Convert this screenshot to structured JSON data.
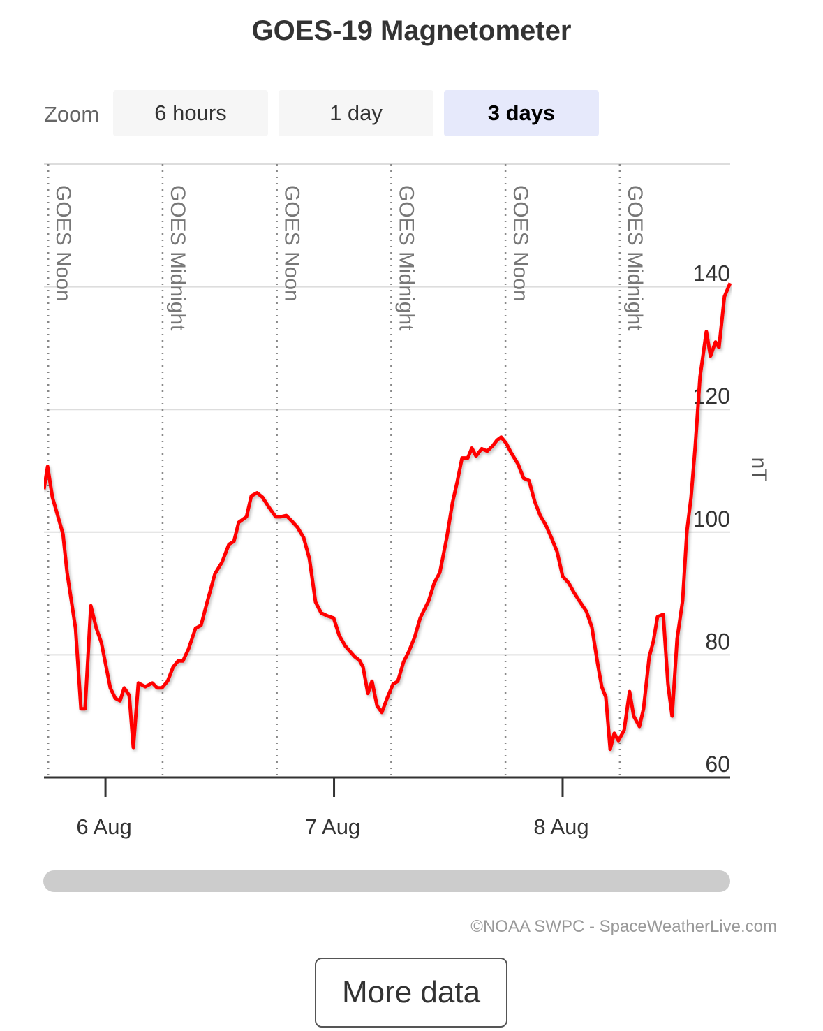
{
  "header": {
    "title": "GOES-19 Magnetometer"
  },
  "zoom": {
    "label": "Zoom",
    "options": [
      "6 hours",
      "1 day",
      "3 days"
    ],
    "selected": 2
  },
  "chart_data": {
    "type": "line",
    "y_label": "nT",
    "x": [
      5.731,
      5.747,
      5.768,
      5.814,
      5.832,
      5.869,
      5.893,
      5.911,
      5.936,
      5.96,
      5.982,
      6.021,
      6.043,
      6.064,
      6.082,
      6.104,
      6.122,
      6.144,
      6.174,
      6.205,
      6.226,
      6.247,
      6.272,
      6.296,
      6.318,
      6.339,
      6.363,
      6.394,
      6.418,
      6.443,
      6.479,
      6.51,
      6.54,
      6.562,
      6.583,
      6.617,
      6.638,
      6.663,
      6.687,
      6.718,
      6.745,
      6.766,
      6.791,
      6.815,
      6.84,
      6.867,
      6.892,
      6.919,
      6.944,
      6.974,
      6.998,
      7.023,
      7.05,
      7.09,
      7.111,
      7.127,
      7.148,
      7.166,
      7.188,
      7.209,
      7.234,
      7.258,
      7.279,
      7.304,
      7.328,
      7.353,
      7.377,
      7.414,
      7.438,
      7.463,
      7.493,
      7.518,
      7.539,
      7.56,
      7.585,
      7.603,
      7.621,
      7.646,
      7.67,
      7.695,
      7.713,
      7.731,
      7.753,
      7.774,
      7.805,
      7.829,
      7.853,
      7.878,
      7.902,
      7.927,
      7.951,
      7.976,
      8.0,
      8.027,
      8.049,
      8.073,
      8.104,
      8.128,
      8.153,
      8.171,
      8.189,
      8.208,
      8.226,
      8.244,
      8.269,
      8.293,
      8.311,
      8.336,
      8.354,
      8.379,
      8.397,
      8.415,
      8.44,
      8.461,
      8.479,
      8.501,
      8.525,
      8.544,
      8.562,
      8.58,
      8.601,
      8.629,
      8.647,
      8.669,
      8.684,
      8.708,
      8.733
    ],
    "series": [
      {
        "name": "GOES-19",
        "color": "#ff0000",
        "values": [
          107,
          110.7,
          105.7,
          99.7,
          93.4,
          84.3,
          71.2,
          71.2,
          88,
          84.3,
          82,
          74.6,
          72.9,
          72.5,
          74.6,
          73.4,
          64.9,
          75.4,
          74.8,
          75.4,
          74.6,
          74.6,
          75.7,
          78,
          79,
          79,
          80.9,
          84.3,
          84.8,
          88.3,
          93.2,
          95.1,
          98,
          98.5,
          101.6,
          102.5,
          105.9,
          106.4,
          105.7,
          103.9,
          102.5,
          102.5,
          102.7,
          101.8,
          100.8,
          99.1,
          95.7,
          88.6,
          86.8,
          86.3,
          86,
          83.1,
          81.4,
          79.7,
          79.1,
          78,
          73.7,
          75.7,
          71.7,
          70.6,
          73.1,
          75.2,
          75.7,
          78.8,
          80.6,
          82.9,
          86,
          88.8,
          91.7,
          93.4,
          99.1,
          104.8,
          108.2,
          112.1,
          112.1,
          113.7,
          112.4,
          113.6,
          113.2,
          114.1,
          115,
          115.5,
          114.5,
          113,
          111.1,
          108.8,
          108.4,
          105,
          102.7,
          101.1,
          99.1,
          96.8,
          92.8,
          91.7,
          90.2,
          88.8,
          87.1,
          84.5,
          78.6,
          74.8,
          73.1,
          64.6,
          67.2,
          66,
          67.7,
          74,
          70,
          68.3,
          71.2,
          79.7,
          82.2,
          86.2,
          86.6,
          75.2,
          70,
          82.6,
          88.8,
          100.2,
          105.7,
          113.9,
          125.3,
          132.7,
          128.7,
          131,
          130.1,
          138.4,
          140.6
        ]
      }
    ],
    "xlim": [
      5.731,
      8.733
    ],
    "xticks": [
      {
        "value": 6,
        "label": "6 Aug"
      },
      {
        "value": 7,
        "label": "7 Aug"
      },
      {
        "value": 8,
        "label": "8 Aug"
      }
    ],
    "ylim": [
      60,
      160
    ],
    "yticks": [
      60,
      80,
      100,
      120,
      140
    ],
    "grid": true,
    "annotations": [
      {
        "x": 5.75,
        "label": "GOES Noon"
      },
      {
        "x": 6.25,
        "label": "GOES Midnight"
      },
      {
        "x": 6.75,
        "label": "GOES Noon"
      },
      {
        "x": 7.25,
        "label": "GOES Midnight"
      },
      {
        "x": 7.75,
        "label": "GOES Noon"
      },
      {
        "x": 8.25,
        "label": "GOES Midnight"
      }
    ]
  },
  "footer": {
    "credit": "©NOAA SWPC - SpaceWeatherLive.com",
    "button": "More data"
  }
}
